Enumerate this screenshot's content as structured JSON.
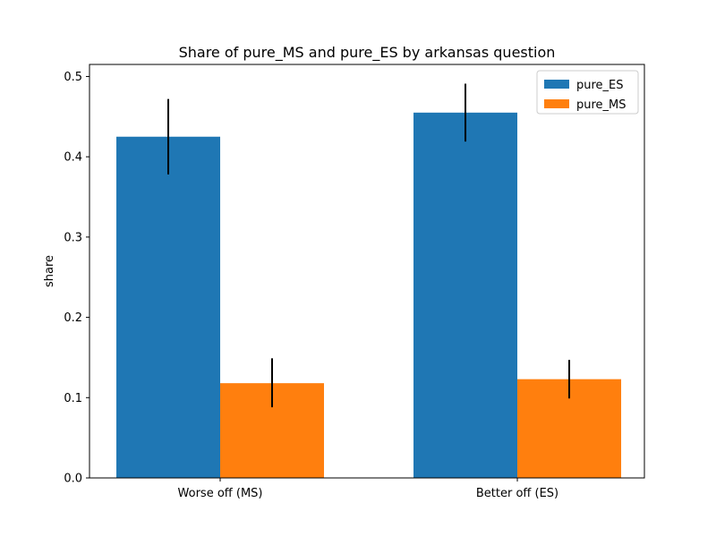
{
  "chart_data": {
    "type": "bar",
    "title": "Share of pure_MS and pure_ES by arkansas question",
    "xlabel": "",
    "ylabel": "share",
    "categories": [
      "Worse off (MS)",
      "Better off (ES)"
    ],
    "ylim": [
      0,
      0.515
    ],
    "yticks": [
      0.0,
      0.1,
      0.2,
      0.3,
      0.4,
      0.5
    ],
    "ytick_labels": [
      "0.0",
      "0.1",
      "0.2",
      "0.3",
      "0.4",
      "0.5"
    ],
    "grid": false,
    "legend_position": "top-right",
    "series": [
      {
        "name": "pure_ES",
        "color": "#1f77b4",
        "values": [
          0.425,
          0.455
        ],
        "error_low": [
          0.378,
          0.419
        ],
        "error_high": [
          0.472,
          0.491
        ]
      },
      {
        "name": "pure_MS",
        "color": "#ff7f0e",
        "values": [
          0.118,
          0.123
        ],
        "error_low": [
          0.088,
          0.099
        ],
        "error_high": [
          0.149,
          0.147
        ]
      }
    ],
    "errorbar_color": "#000000"
  }
}
